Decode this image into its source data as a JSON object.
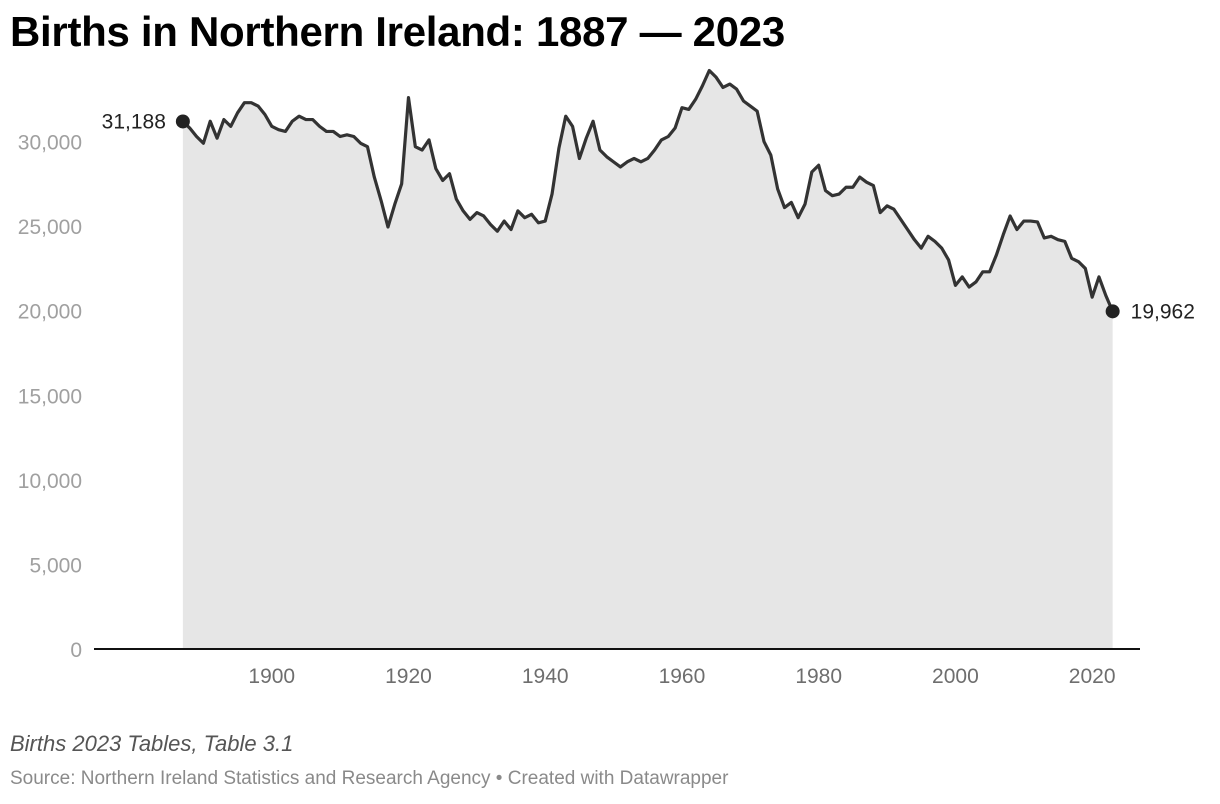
{
  "title": "Births in Northern Ireland: 1887 — 2023",
  "note": "Births 2023 Tables, Table 3.1",
  "source": "Source: Northern Ireland Statistics and Research Agency • Created with Datawrapper",
  "colors": {
    "line": "#333333",
    "area": "#e6e6e6",
    "axis": "#111111"
  },
  "chart_data": {
    "type": "area",
    "title": "Births in Northern Ireland: 1887 — 2023",
    "xlabel": "",
    "ylabel": "",
    "xlim": [
      1874,
      2027
    ],
    "ylim": [
      0,
      35000
    ],
    "grid": false,
    "x_ticks": [
      1900,
      1920,
      1940,
      1960,
      1980,
      2000,
      2020
    ],
    "y_ticks": [
      0,
      5000,
      10000,
      15000,
      20000,
      25000,
      30000
    ],
    "y_tick_labels": [
      "0",
      "5,000",
      "10,000",
      "15,000",
      "20,000",
      "25,000",
      "30,000"
    ],
    "annotations": [
      {
        "x": 1887,
        "y": 31188,
        "text": "31,188"
      },
      {
        "x": 2023,
        "y": 19962,
        "text": "19,962"
      }
    ],
    "series": [
      {
        "x": [
          1887,
          1888,
          1889,
          1890,
          1891,
          1892,
          1893,
          1894,
          1895,
          1896,
          1897,
          1898,
          1899,
          1900,
          1901,
          1902,
          1903,
          1904,
          1905,
          1906,
          1907,
          1908,
          1909,
          1910,
          1911,
          1912,
          1913,
          1914,
          1915,
          1916,
          1917,
          1918,
          1919,
          1920,
          1921,
          1922,
          1923,
          1924,
          1925,
          1926,
          1927,
          1928,
          1929,
          1930,
          1931,
          1932,
          1933,
          1934,
          1935,
          1936,
          1937,
          1938,
          1939,
          1940,
          1941,
          1942,
          1943,
          1944,
          1945,
          1946,
          1947,
          1948,
          1949,
          1950,
          1951,
          1952,
          1953,
          1954,
          1955,
          1956,
          1957,
          1958,
          1959,
          1960,
          1961,
          1962,
          1963,
          1964,
          1965,
          1966,
          1967,
          1968,
          1969,
          1970,
          1971,
          1972,
          1973,
          1974,
          1975,
          1976,
          1977,
          1978,
          1979,
          1980,
          1981,
          1982,
          1983,
          1984,
          1985,
          1986,
          1987,
          1988,
          1989,
          1990,
          1991,
          1992,
          1993,
          1994,
          1995,
          1996,
          1997,
          1998,
          1999,
          2000,
          2001,
          2002,
          2003,
          2004,
          2005,
          2006,
          2007,
          2008,
          2009,
          2010,
          2011,
          2012,
          2013,
          2014,
          2015,
          2016,
          2017,
          2018,
          2019,
          2020,
          2021,
          2022,
          2023
        ],
        "values": [
          31188,
          30800,
          30300,
          29900,
          31200,
          30200,
          31300,
          30900,
          31700,
          32300,
          32300,
          32100,
          31600,
          30900,
          30700,
          30600,
          31200,
          31500,
          31300,
          31300,
          30900,
          30600,
          30600,
          30300,
          30400,
          30300,
          29900,
          29700,
          27900,
          26500,
          24950,
          26300,
          27500,
          32600,
          29700,
          29500,
          30100,
          28400,
          27700,
          28100,
          26600,
          25900,
          25400,
          25800,
          25600,
          25100,
          24700,
          25300,
          24800,
          25900,
          25500,
          25700,
          25200,
          25300,
          26900,
          29600,
          31500,
          30900,
          29000,
          30200,
          31200,
          29500,
          29100,
          28800,
          28500,
          28800,
          29000,
          28800,
          29000,
          29500,
          30100,
          30300,
          30800,
          32000,
          31900,
          32500,
          33300,
          34200,
          33800,
          33200,
          33400,
          33100,
          32400,
          32100,
          31800,
          30000,
          29200,
          27200,
          26100,
          26400,
          25500,
          26300,
          28200,
          28600,
          27100,
          26800,
          26900,
          27300,
          27300,
          27900,
          27600,
          27400,
          25800,
          26200,
          26000,
          25400,
          24800,
          24200,
          23700,
          24400,
          24100,
          23700,
          23000,
          21500,
          22000,
          21400,
          21700,
          22300,
          22300,
          23300,
          24500,
          25600,
          24800,
          25300,
          25300,
          25250,
          24300,
          24400,
          24200,
          24100,
          23100,
          22900,
          22500,
          20800,
          22000,
          20900,
          19962
        ]
      }
    ]
  }
}
